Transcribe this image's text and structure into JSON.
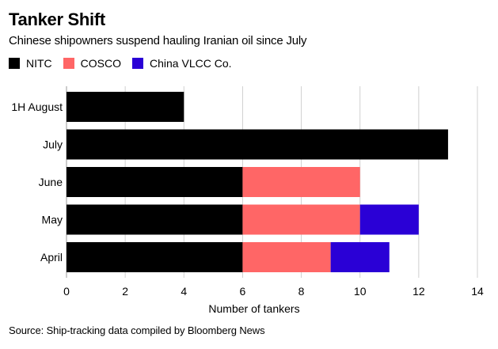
{
  "title": "Tanker Shift",
  "subtitle": "Chinese shipowners suspend hauling Iranian oil since July",
  "source": "Source: Ship-tracking data compiled by Bloomberg News",
  "chart_data": {
    "type": "bar",
    "orientation": "horizontal",
    "stacked": true,
    "categories": [
      "1H August",
      "July",
      "June",
      "May",
      "April"
    ],
    "series": [
      {
        "name": "NITC",
        "color": "#000000",
        "values": [
          4,
          13,
          6,
          6,
          6
        ]
      },
      {
        "name": "COSCO",
        "color": "#ff6666",
        "values": [
          0,
          0,
          4,
          4,
          3
        ]
      },
      {
        "name": "China VLCC Co.",
        "color": "#2a00d6",
        "values": [
          0,
          0,
          0,
          2,
          2
        ]
      }
    ],
    "xlabel": "Number of tankers",
    "ylabel": "",
    "xlim": [
      0,
      14
    ],
    "xticks": [
      "0",
      "2",
      "4",
      "6",
      "8",
      "10",
      "12",
      "14"
    ],
    "grid": true,
    "legend": "top-left"
  }
}
